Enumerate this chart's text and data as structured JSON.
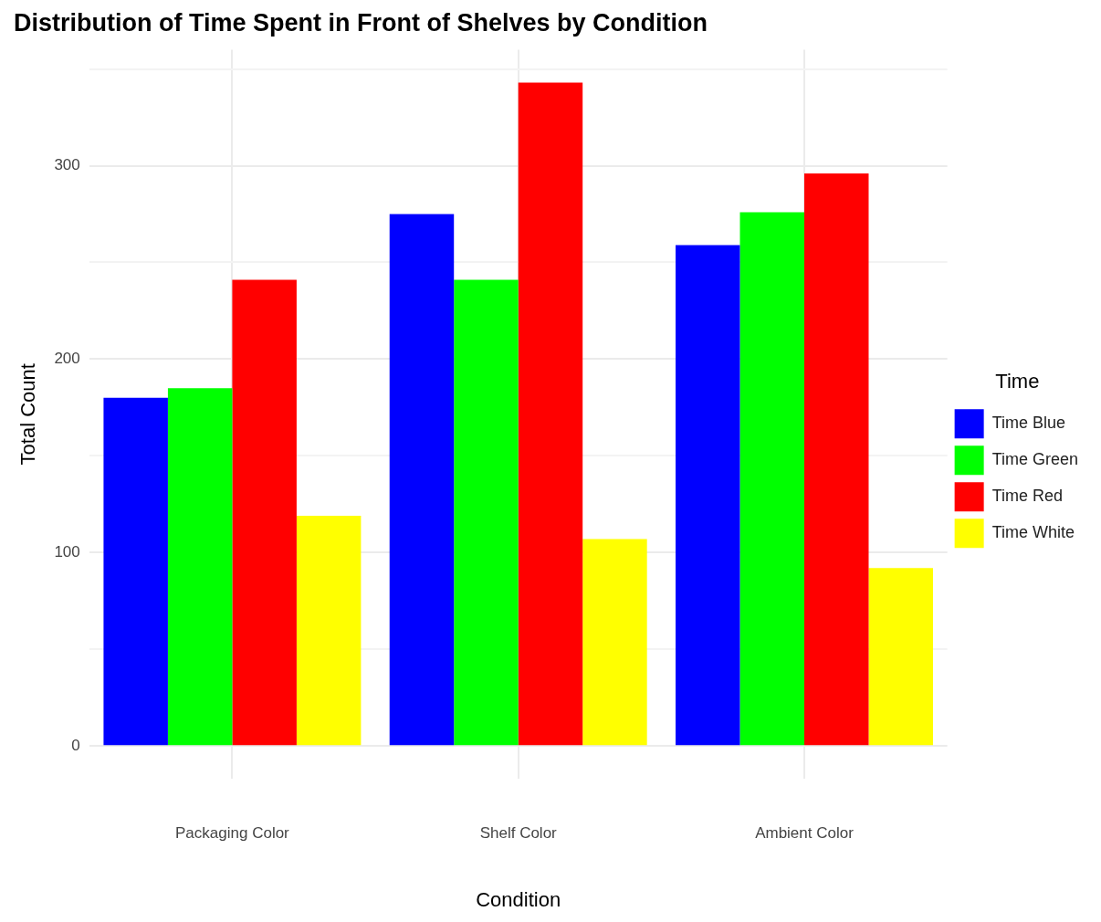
{
  "chart_data": {
    "type": "bar",
    "title": "Distribution of Time Spent in Front of Shelves by Condition",
    "xlabel": "Condition",
    "ylabel": "Total Count",
    "legend_title": "Time",
    "categories": [
      "Packaging Color",
      "Shelf Color",
      "Ambient Color"
    ],
    "series": [
      {
        "name": "Time Blue",
        "color": "#0000ff",
        "values": [
          180,
          275,
          259
        ]
      },
      {
        "name": "Time Green",
        "color": "#00ff00",
        "values": [
          185,
          241,
          276
        ]
      },
      {
        "name": "Time Red",
        "color": "#ff0000",
        "values": [
          241,
          343,
          296
        ]
      },
      {
        "name": "Time White",
        "color": "#ffff00",
        "values": [
          119,
          107,
          92
        ]
      }
    ],
    "ylim": [
      -17,
      360
    ],
    "yticks": [
      0,
      {
        "value": 50,
        "label": null
      },
      100,
      {
        "value": 150,
        "label": null
      },
      200,
      {
        "value": 250,
        "label": null
      },
      300,
      {
        "value": 350,
        "label": null
      }
    ],
    "grid": true,
    "legend": "right"
  }
}
